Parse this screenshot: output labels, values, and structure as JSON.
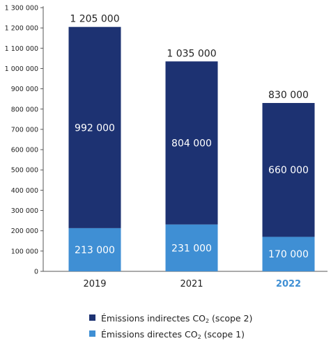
{
  "chart_data": {
    "type": "bar",
    "stacked": true,
    "categories": [
      "2019",
      "2021",
      "2022"
    ],
    "highlight_category": "2022",
    "ylim": [
      0,
      1300000
    ],
    "yticks": [
      0,
      100000,
      200000,
      300000,
      400000,
      500000,
      600000,
      700000,
      800000,
      900000,
      1000000,
      1100000,
      1200000,
      1300000
    ],
    "ytick_labels": [
      "0",
      "100 000",
      "200 000",
      "300 000",
      "400 000",
      "500 000",
      "600 000",
      "700 000",
      "800 000",
      "900 000",
      "1 000 000",
      "1 100 000",
      "1 200 000",
      "1 300 000"
    ],
    "series": [
      {
        "key": "direct",
        "name": "Émissions directes CO₂ (scope 1)",
        "color": "#3f8fd4",
        "values": [
          213000,
          231000,
          170000
        ],
        "value_labels": [
          "213 000",
          "231 000",
          "170 000"
        ]
      },
      {
        "key": "indirect",
        "name": "Émissions indirectes CO₂ (scope 2)",
        "color": "#1d3272",
        "values": [
          992000,
          804000,
          660000
        ],
        "value_labels": [
          "992 000",
          "804 000",
          "660 000"
        ]
      }
    ],
    "totals": [
      1205000,
      1035000,
      830000
    ],
    "total_labels": [
      "1 205 000",
      "1 035 000",
      "830 000"
    ],
    "colors": {
      "axis": "#555555",
      "text": "#222222",
      "highlight": "#3f8fd4",
      "segment_label": "#ffffff"
    }
  },
  "legend": [
    {
      "key": "indirect",
      "main": "Émissions indirectes CO",
      "sub": "2",
      "tail": " (scope 2)",
      "color": "#1d3272"
    },
    {
      "key": "direct",
      "main": "Émissions directes CO",
      "sub": "2",
      "tail": " (scope 1)",
      "color": "#3f8fd4"
    }
  ]
}
